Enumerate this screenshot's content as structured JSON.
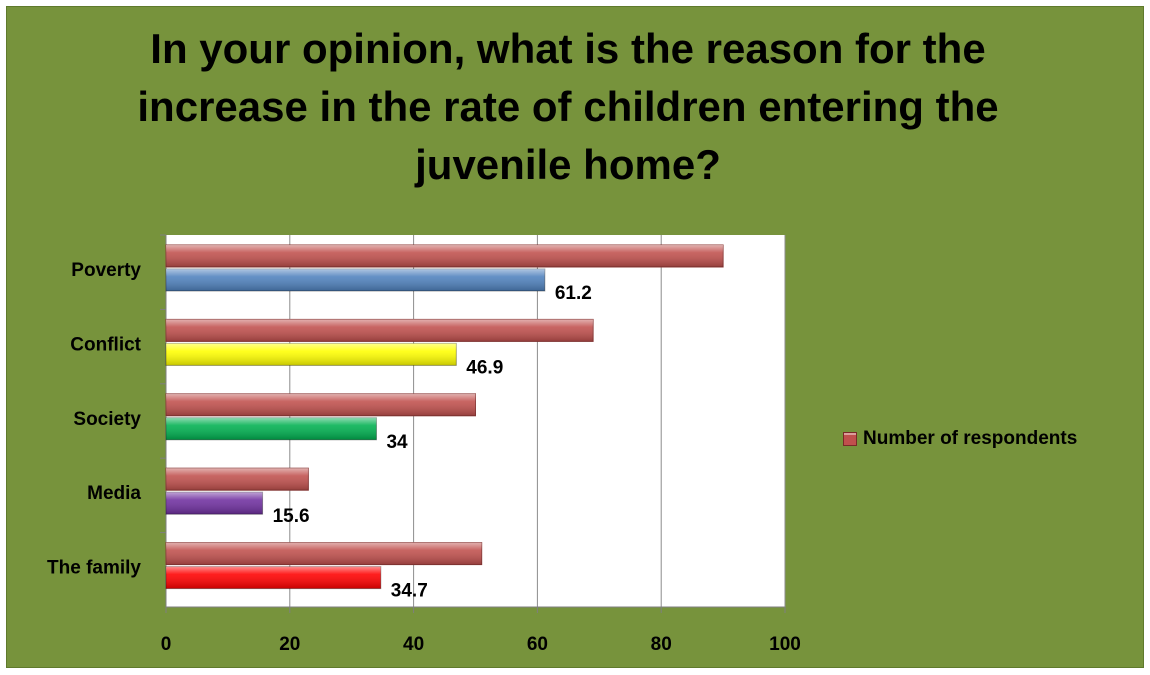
{
  "chart_data": {
    "type": "bar",
    "orientation": "horizontal",
    "title": "In your opinion, what is the reason for the increase in the rate of children entering the juvenile home?",
    "categories": [
      "Poverty",
      "Conflict",
      "Society",
      "Media",
      "The family"
    ],
    "series": [
      {
        "name": "Number of respondents",
        "values": [
          90,
          69,
          50,
          23,
          51
        ],
        "color": "#c0504d"
      },
      {
        "values": [
          61.2,
          46.9,
          34,
          15.6,
          34.7
        ],
        "colors": [
          "#4f81bd",
          "#ffff00",
          "#00b050",
          "#7030a0",
          "#ff0000"
        ],
        "labels": [
          "61.2",
          "46.9",
          "34",
          "15.6",
          "34.7"
        ]
      }
    ],
    "xlim": [
      0,
      100
    ],
    "xticks": [
      "0",
      "20",
      "40",
      "60",
      "80",
      "100"
    ],
    "grid": true,
    "legend_position": "right"
  }
}
